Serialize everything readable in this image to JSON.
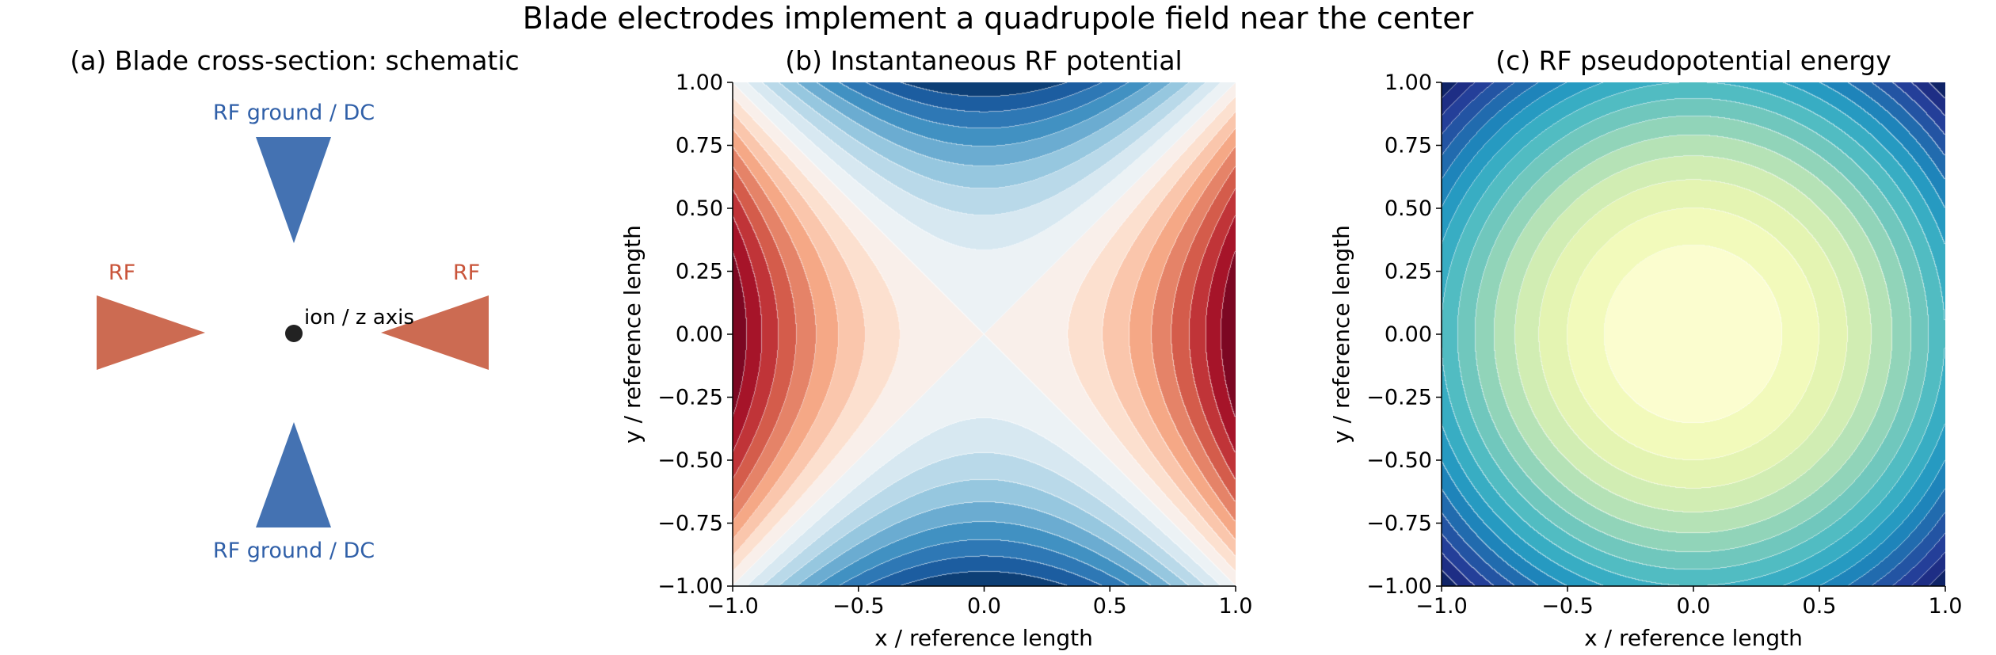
{
  "suptitle": "Blade electrodes implement a quadrupole field near the center",
  "chart_data": [
    {
      "type": "diagram",
      "title": "(a) Blade cross-section: schematic",
      "labels": {
        "top": "RF ground / DC",
        "bottom": "RF ground / DC",
        "left": "RF",
        "right": "RF",
        "center": "ion / z axis"
      },
      "colors": {
        "ground": "#4472b2",
        "rf": "#cc6b52",
        "ground_text": "#2f5fa8",
        "rf_text": "#c9543a",
        "ion": "#222222"
      }
    },
    {
      "type": "heatmap",
      "title": "(b) Instantaneous RF potential",
      "xlabel": "x / reference length",
      "ylabel": "y / reference length",
      "xlim": [
        -1.0,
        1.0
      ],
      "ylim": [
        -1.0,
        1.0
      ],
      "xticks": [
        "−1.0",
        "−0.5",
        "0.0",
        "0.5",
        "1.0"
      ],
      "yticks": [
        "−1.00",
        "−0.75",
        "−0.50",
        "−0.25",
        "0.00",
        "0.25",
        "0.50",
        "0.75",
        "1.00"
      ],
      "function": "x^2 - y^2",
      "zlim": [
        -1.0,
        1.0
      ],
      "levels": 18,
      "colormap": "RdBu_r",
      "contour_lines": true
    },
    {
      "type": "heatmap",
      "title": "(c) RF pseudopotential energy",
      "xlabel": "x / reference length",
      "ylabel": "y / reference length",
      "xlim": [
        -1.0,
        1.0
      ],
      "ylim": [
        -1.0,
        1.0
      ],
      "xticks": [
        "−1.0",
        "−0.5",
        "0.0",
        "0.5",
        "1.0"
      ],
      "yticks": [
        "−1.00",
        "−0.75",
        "−0.50",
        "−0.25",
        "0.00",
        "0.25",
        "0.50",
        "0.75",
        "1.00"
      ],
      "function": "x^2 + y^2",
      "zlim": [
        0.0,
        2.0
      ],
      "levels": 16,
      "colormap": "YlGnBu",
      "contour_lines": true
    }
  ]
}
